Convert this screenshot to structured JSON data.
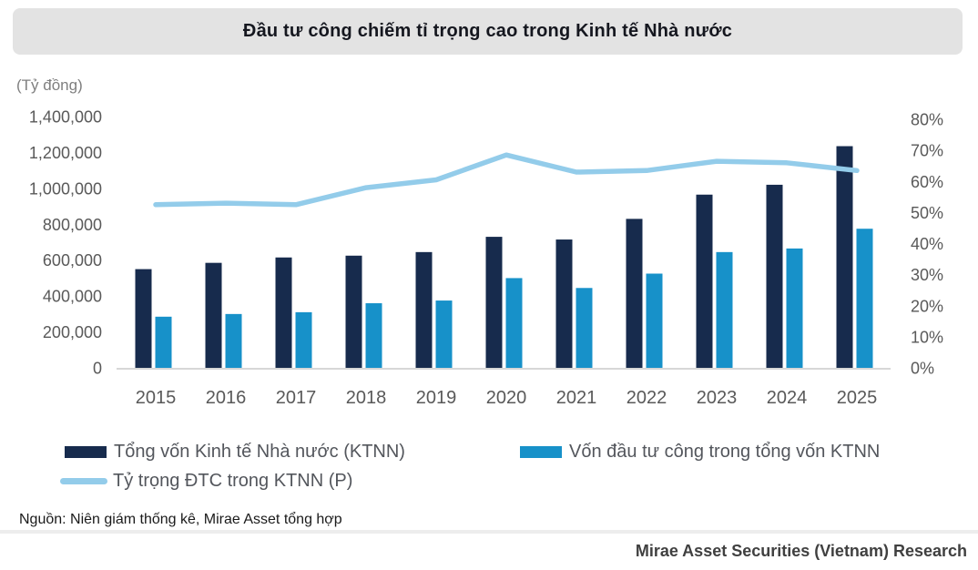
{
  "title": "Đầu tư công chiếm tỉ trọng cao trong Kinh tế Nhà nước",
  "source_note": "Nguồn: Niên giám thống kê, Mirae Asset tổng hợp",
  "footer": "Mirae Asset Securities (Vietnam) Research",
  "colors": {
    "title_bg": "#E3E3E3",
    "bar_dark": "#172B4D",
    "bar_blue": "#1791C9",
    "line_light_blue": "#93CCEA",
    "axis_text": "#595959",
    "unit_text": "#7F7F7F",
    "legend_text": "#53565C",
    "baseline": "#D7D7D7"
  },
  "chart_data": {
    "type": "bar",
    "subtype": "grouped bars with secondary-axis line",
    "title": "Đầu tư công chiếm tỉ trọng cao trong Kinh tế Nhà nước",
    "unit_label": "(Tỷ đồng)",
    "categories": [
      "2015",
      "2016",
      "2017",
      "2018",
      "2019",
      "2020",
      "2021",
      "2022",
      "2023",
      "2024",
      "2025"
    ],
    "series": [
      {
        "name": "Tổng vốn Kinh tế Nhà nước (KTNN)",
        "type": "bar",
        "axis": "left",
        "color_key": "bar_dark",
        "values": [
          550000,
          585000,
          615000,
          625000,
          645000,
          730000,
          715000,
          830000,
          965000,
          1020000,
          1235000
        ]
      },
      {
        "name": "Vốn đầu tư công trong tổng vốn KTNN",
        "type": "bar",
        "axis": "left",
        "color_key": "bar_blue",
        "values": [
          285000,
          300000,
          310000,
          360000,
          375000,
          500000,
          445000,
          525000,
          645000,
          665000,
          775000
        ]
      },
      {
        "name": "Tỷ trọng ĐTC trong KTNN (P)",
        "type": "line",
        "axis": "right",
        "color_key": "line_light_blue",
        "values": [
          52.5,
          53,
          52.5,
          58,
          60.5,
          68.5,
          63,
          63.5,
          66.5,
          66,
          63.5
        ]
      }
    ],
    "left_axis": {
      "label": "(Tỷ đồng)",
      "min": 0,
      "max": 1400000,
      "step": 200000,
      "tick_format": "thousands-comma"
    },
    "right_axis": {
      "min": 0,
      "max": 80,
      "step": 10,
      "suffix": "%"
    },
    "grid": false,
    "legend_position": "bottom"
  },
  "legend": {
    "items": [
      {
        "label": "Tổng vốn Kinh tế Nhà nước (KTNN)",
        "swatch": "bar_dark",
        "swatch_type": "bar"
      },
      {
        "label": "Vốn đầu tư công trong tổng vốn KTNN",
        "swatch": "bar_blue",
        "swatch_type": "bar"
      },
      {
        "label": "Tỷ trọng ĐTC trong KTNN (P)",
        "swatch": "line_light_blue",
        "swatch_type": "line"
      }
    ]
  }
}
